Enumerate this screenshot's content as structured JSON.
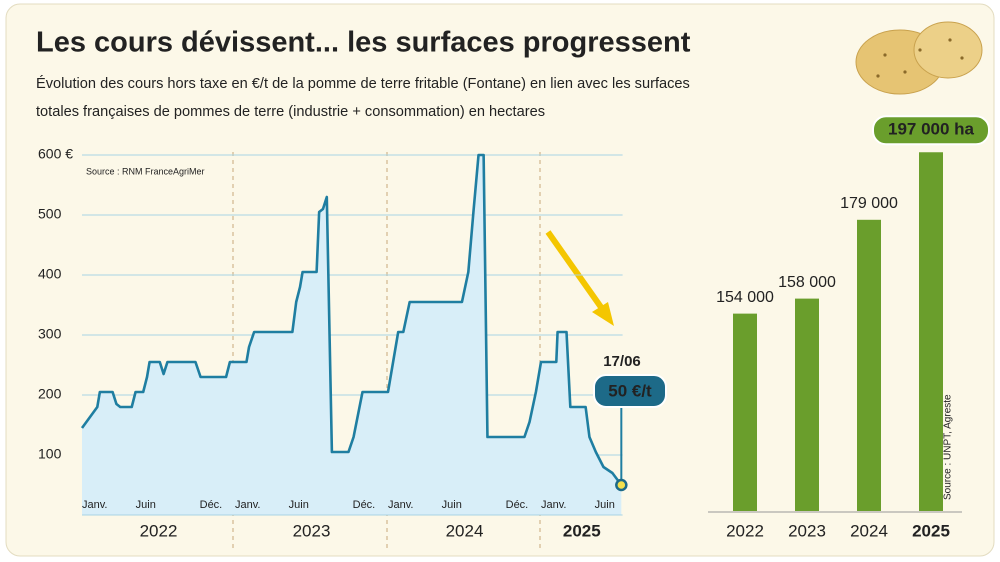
{
  "title": "Les cours dévissent... les surfaces progressent",
  "subtitle": [
    "Évolution des cours hors taxe en €/t de la pomme de terre fritable (Fontane) en lien avec les surfaces",
    "totales françaises de pommes de terre (industrie + consommation) en hectares"
  ],
  "chart_data": [
    {
      "type": "line",
      "source": "Source : RNM FranceAgriMer",
      "x": [
        0,
        1.2,
        1.4,
        2.4,
        2.7,
        3,
        3.9,
        4.2,
        4.8,
        5.1,
        5.3,
        6.1,
        6.4,
        6.7,
        8.9,
        9.3,
        11.3,
        11.6,
        12,
        12.9,
        13.1,
        13.5,
        16.5,
        16.8,
        17.1,
        17.3,
        18.4,
        18.6,
        18.9,
        19.2,
        19.6,
        20.9,
        21.3,
        22,
        23.6,
        24,
        24.4,
        24.8,
        25.2,
        25.7,
        29.8,
        30.3,
        30.5,
        30.7,
        31.1,
        31.5,
        31.8,
        34.7,
        35.1,
        35.6,
        36,
        37.2,
        37.3,
        38,
        38.3,
        39.5,
        39.8,
        40.3,
        40.9,
        41.6,
        42.3
      ],
      "values": [
        145,
        180,
        205,
        205,
        185,
        180,
        180,
        205,
        205,
        230,
        255,
        255,
        235,
        255,
        255,
        230,
        230,
        255,
        255,
        255,
        280,
        305,
        305,
        355,
        380,
        405,
        405,
        505,
        510,
        530,
        105,
        105,
        130,
        205,
        205,
        205,
        255,
        305,
        305,
        355,
        355,
        405,
        455,
        505,
        600,
        600,
        130,
        130,
        155,
        205,
        255,
        255,
        305,
        305,
        180,
        180,
        130,
        105,
        80,
        70,
        50
      ],
      "color": "#1f7ea1",
      "fill": "#d8eef8",
      "xlim": [
        0,
        42.4
      ],
      "xticks": [
        {
          "value": 0,
          "label": "Janv."
        },
        {
          "value": 5,
          "label": "Juin"
        },
        {
          "value": 11,
          "label": "Déc."
        },
        {
          "value": 12,
          "label": "Janv."
        },
        {
          "value": 17,
          "label": "Juin"
        },
        {
          "value": 23,
          "label": "Déc."
        },
        {
          "value": 24,
          "label": "Janv."
        },
        {
          "value": 29,
          "label": "Juin"
        },
        {
          "value": 35,
          "label": "Déc."
        },
        {
          "value": 36,
          "label": "Janv."
        },
        {
          "value": 41,
          "label": "Juin"
        }
      ],
      "periods": [
        "2022",
        "2023",
        "2024",
        "2025"
      ],
      "ylim": [
        0,
        610
      ],
      "yticks": [
        {
          "value": 600,
          "label": "600 €"
        },
        100,
        200,
        300,
        400,
        500
      ],
      "grid": true,
      "callout": {
        "date": "17/06",
        "label": "50 €/t"
      }
    },
    {
      "type": "bar",
      "source": "Source : UNPT, Agreste",
      "categories": [
        "2022",
        "2023",
        "2024",
        "2025"
      ],
      "values": [
        154000,
        158000,
        179000,
        197000
      ],
      "value_labels": [
        "154 000",
        "158 000",
        "179 000",
        "197 000 ha"
      ],
      "color": "#6a9e2c",
      "ylim": [
        101400,
        200000
      ]
    }
  ]
}
